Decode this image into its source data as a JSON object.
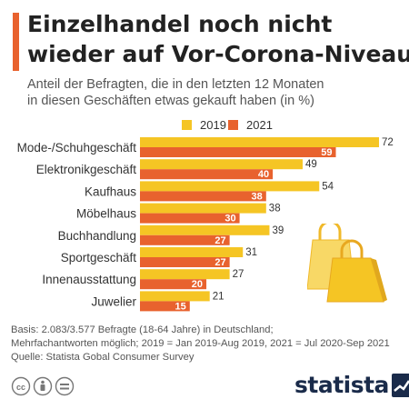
{
  "title_lines": [
    "Einzelhandel noch nicht",
    "wieder auf Vor-Corona-Niveau"
  ],
  "subtitle_lines": [
    "Anteil der Befragten, die in den letzten 12 Monaten",
    "in diesen Geschäften etwas gekauft haben (in %)"
  ],
  "colors": {
    "accent": "#e8622e",
    "series_2019": "#f5c524",
    "series_2021": "#e8622e",
    "brand": "#1a2b4a"
  },
  "chart_data": {
    "type": "bar",
    "orientation": "horizontal",
    "categories": [
      "Mode-/Schuhgeschäft",
      "Elektronikgeschäft",
      "Kaufhaus",
      "Möbelhaus",
      "Buchhandlung",
      "Sportgeschäft",
      "Innenausstattung",
      "Juwelier"
    ],
    "series": [
      {
        "name": "2019",
        "values": [
          72,
          49,
          54,
          38,
          39,
          31,
          27,
          21
        ],
        "color": "#f5c524"
      },
      {
        "name": "2021",
        "values": [
          59,
          40,
          38,
          30,
          27,
          27,
          20,
          15
        ],
        "color": "#e8622e"
      }
    ],
    "xlim": [
      0,
      72
    ],
    "legend": "top",
    "grid": false
  },
  "footnote_lines": [
    "Basis: 2.083/3.577 Befragte (18-64 Jahre) in Deutschland;",
    "Mehrfachantworten möglich; 2019 = Jan 2019-Aug 2019, 2021 = Jul 2020-Sep 2021",
    "Quelle: Statista Gobal Consumer Survey"
  ],
  "brand": {
    "name": "statista"
  },
  "icons": [
    "cc-icon",
    "person-icon",
    "equals-icon",
    "shopping-bags-icon",
    "statista-logo-icon"
  ]
}
